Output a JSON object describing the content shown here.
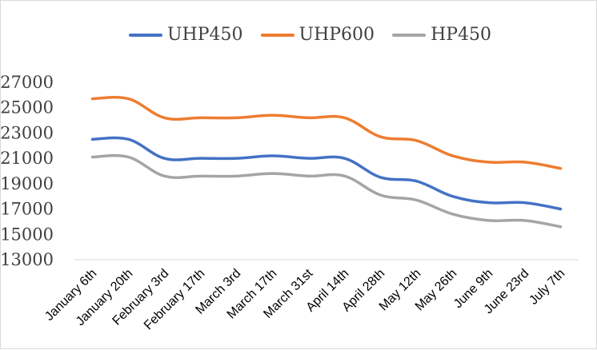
{
  "chart_data": {
    "type": "line",
    "categories": [
      "January 6th",
      "January 20th",
      "February 3rd",
      "February 17th",
      "March 3rd",
      "March 17th",
      "March 31st",
      "April 14th",
      "April 28th",
      "May 12th",
      "May 26th",
      "June 9th",
      "June 23rd",
      "July 7th"
    ],
    "series": [
      {
        "name": "UHP450",
        "color": "#4472c4",
        "values": [
          22500,
          22500,
          21000,
          21000,
          21000,
          21200,
          21000,
          21000,
          19500,
          19200,
          18000,
          17500,
          17500,
          17000
        ]
      },
      {
        "name": "UHP600",
        "color": "#ed7d31",
        "values": [
          25700,
          25700,
          24200,
          24200,
          24200,
          24400,
          24200,
          24200,
          22700,
          22400,
          21200,
          20700,
          20700,
          20200
        ]
      },
      {
        "name": "HP450",
        "color": "#a5a5a5",
        "values": [
          21100,
          21100,
          19600,
          19600,
          19600,
          19800,
          19600,
          19600,
          18100,
          17700,
          16600,
          16100,
          16100,
          15600
        ]
      }
    ],
    "yticks": [
      13000,
      15000,
      17000,
      19000,
      21000,
      23000,
      25000,
      27000
    ],
    "ylim": [
      13000,
      27000
    ],
    "grid": false,
    "legend_position": "top"
  }
}
